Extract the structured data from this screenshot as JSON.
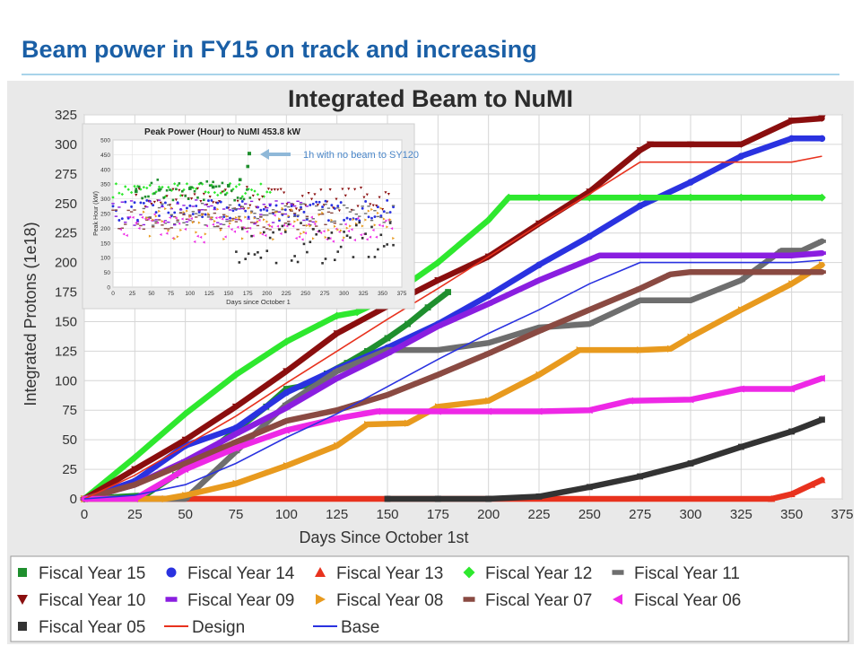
{
  "slide": {
    "title": "Beam power in FY15 on track and increasing"
  },
  "colors": {
    "title": "#1a5fa6",
    "rule": "#a8d4ea",
    "panel": "#e9e9e9",
    "annotation_text": "#4a86c8"
  },
  "chart_data": [
    {
      "type": "line",
      "title": "Integrated Beam to NuMI",
      "xlabel": "Days Since October 1st",
      "ylabel": "Integrated Protons (1e18)",
      "xlim": [
        0,
        375
      ],
      "ylim": [
        0,
        325
      ],
      "xticks": [
        0,
        25,
        50,
        75,
        100,
        125,
        150,
        175,
        200,
        225,
        250,
        275,
        300,
        325,
        350,
        375
      ],
      "yticks": [
        0,
        25,
        50,
        75,
        100,
        125,
        150,
        175,
        200,
        225,
        250,
        275,
        300,
        325
      ],
      "grid": true,
      "legend_position": "bottom",
      "series": [
        {
          "name": "Fiscal Year 15",
          "marker": "square",
          "color": "#1f8f2e",
          "x": [
            0,
            30,
            45,
            60,
            75,
            90,
            100,
            110,
            120,
            130,
            140,
            150,
            160,
            170,
            180
          ],
          "y": [
            0,
            3,
            20,
            38,
            58,
            78,
            93,
            96,
            106,
            115,
            125,
            136,
            148,
            162,
            175
          ]
        },
        {
          "name": "Fiscal Year 14",
          "marker": "circle",
          "color": "#2a32e0",
          "x": [
            0,
            25,
            50,
            75,
            100,
            125,
            150,
            175,
            200,
            225,
            250,
            275,
            300,
            325,
            350,
            365
          ],
          "y": [
            0,
            15,
            45,
            60,
            90,
            110,
            128,
            148,
            172,
            198,
            222,
            248,
            268,
            290,
            305,
            305
          ]
        },
        {
          "name": "Fiscal Year 13",
          "marker": "triangle",
          "color": "#e8321e",
          "x": [
            0,
            340,
            350,
            360,
            365
          ],
          "y": [
            0,
            0,
            4,
            12,
            16
          ]
        },
        {
          "name": "Fiscal Year 12",
          "marker": "diamond",
          "color": "#2ee82e",
          "x": [
            0,
            25,
            50,
            75,
            100,
            125,
            135,
            150,
            175,
            200,
            210,
            225,
            250,
            275,
            300,
            325,
            350,
            365
          ],
          "y": [
            0,
            35,
            72,
            105,
            133,
            155,
            158,
            170,
            200,
            236,
            255,
            255,
            255,
            255,
            255,
            255,
            255,
            255
          ]
        },
        {
          "name": "Fiscal Year 11",
          "marker": "dash",
          "color": "#6e6e6e",
          "x": [
            0,
            50,
            75,
            100,
            125,
            150,
            175,
            200,
            225,
            250,
            275,
            300,
            325,
            345,
            355,
            365
          ],
          "y": [
            0,
            0,
            40,
            80,
            108,
            126,
            126,
            132,
            145,
            148,
            168,
            168,
            185,
            210,
            210,
            218
          ]
        },
        {
          "name": "Fiscal Year 10",
          "marker": "triangle-down",
          "color": "#8a0e0e",
          "x": [
            0,
            25,
            50,
            75,
            100,
            125,
            150,
            175,
            200,
            225,
            250,
            275,
            280,
            300,
            325,
            350,
            365
          ],
          "y": [
            0,
            25,
            50,
            78,
            108,
            140,
            163,
            185,
            205,
            233,
            260,
            295,
            300,
            300,
            300,
            320,
            322
          ]
        },
        {
          "name": "Fiscal Year 09",
          "marker": "dash",
          "color": "#8a1ee0",
          "x": [
            0,
            25,
            50,
            75,
            100,
            125,
            150,
            175,
            200,
            225,
            255,
            280,
            300,
            325,
            350,
            365
          ],
          "y": [
            0,
            12,
            32,
            55,
            77,
            102,
            123,
            146,
            165,
            185,
            206,
            206,
            206,
            206,
            206,
            208
          ]
        },
        {
          "name": "Fiscal Year 08",
          "marker": "triangle-right",
          "color": "#e89a1e",
          "x": [
            0,
            40,
            50,
            75,
            100,
            125,
            140,
            160,
            175,
            200,
            225,
            245,
            275,
            290,
            300,
            325,
            350,
            365
          ],
          "y": [
            0,
            0,
            3,
            13,
            28,
            45,
            63,
            64,
            78,
            83,
            105,
            126,
            126,
            127,
            137,
            160,
            182,
            198
          ]
        },
        {
          "name": "Fiscal Year 07",
          "marker": "dash",
          "color": "#8a4a42",
          "x": [
            0,
            25,
            50,
            75,
            100,
            125,
            150,
            175,
            200,
            225,
            250,
            275,
            290,
            300,
            325,
            350,
            365
          ],
          "y": [
            0,
            12,
            30,
            48,
            66,
            75,
            88,
            105,
            123,
            142,
            160,
            178,
            190,
            192,
            192,
            192,
            192
          ]
        },
        {
          "name": "Fiscal Year 06",
          "marker": "triangle-left",
          "color": "#ee28e6",
          "x": [
            0,
            25,
            50,
            75,
            100,
            125,
            145,
            175,
            200,
            225,
            250,
            270,
            300,
            325,
            350,
            365
          ],
          "y": [
            0,
            0,
            25,
            43,
            58,
            68,
            74,
            74,
            74,
            74,
            75,
            83,
            84,
            93,
            93,
            102
          ]
        },
        {
          "name": "Fiscal Year 05",
          "marker": "square",
          "color": "#333333",
          "x": [
            150,
            175,
            200,
            225,
            250,
            275,
            300,
            325,
            350,
            365
          ],
          "y": [
            0,
            0,
            0,
            2,
            10,
            19,
            30,
            44,
            57,
            67
          ]
        },
        {
          "name": "Design",
          "marker": "line",
          "color": "#e8321e",
          "x": [
            0,
            25,
            50,
            75,
            100,
            125,
            150,
            175,
            200,
            225,
            250,
            275,
            300,
            325,
            350,
            365
          ],
          "y": [
            0,
            20,
            45,
            70,
            98,
            125,
            152,
            178,
            205,
            232,
            258,
            285,
            285,
            285,
            285,
            290
          ]
        },
        {
          "name": "Base",
          "marker": "line",
          "color": "#2a32e0",
          "x": [
            0,
            25,
            50,
            75,
            100,
            125,
            150,
            175,
            200,
            225,
            250,
            275,
            300,
            325,
            350,
            365
          ],
          "y": [
            0,
            3,
            12,
            30,
            52,
            72,
            95,
            118,
            140,
            160,
            182,
            200,
            200,
            200,
            200,
            202
          ]
        }
      ],
      "legend": [
        "Fiscal Year 15",
        "Fiscal Year 14",
        "Fiscal Year 13",
        "Fiscal Year 12",
        "Fiscal Year 11",
        "Fiscal Year 10",
        "Fiscal Year 09",
        "Fiscal Year 08",
        "Fiscal Year 07",
        "Fiscal Year 06",
        "Fiscal Year 05",
        "Design",
        "Base"
      ]
    },
    {
      "type": "scatter",
      "title": "Peak Power (Hour) to NuMI 453.8 kW",
      "xlabel": "Days since October 1",
      "ylabel": "Peak Hour (kW)",
      "xlim": [
        0,
        375
      ],
      "ylim": [
        0,
        500
      ],
      "xticks": [
        0,
        25,
        50,
        75,
        100,
        125,
        150,
        175,
        200,
        225,
        250,
        275,
        300,
        325,
        350,
        375
      ],
      "yticks": [
        0,
        50,
        100,
        150,
        200,
        250,
        300,
        350,
        400,
        450,
        500
      ],
      "grid": true,
      "clusters": [
        {
          "series": "Fiscal Year 12",
          "x0": 0,
          "x1": 205,
          "ymid": 330,
          "spread": 25
        },
        {
          "series": "Fiscal Year 10",
          "x0": 30,
          "x1": 360,
          "ymid": 300,
          "spread": 40
        },
        {
          "series": "Fiscal Year 14",
          "x0": 0,
          "x1": 365,
          "ymid": 260,
          "spread": 35
        },
        {
          "series": "Fiscal Year 11",
          "x0": 40,
          "x1": 365,
          "ymid": 245,
          "spread": 40
        },
        {
          "series": "Fiscal Year 09",
          "x0": 0,
          "x1": 260,
          "ymid": 255,
          "spread": 45
        },
        {
          "series": "Fiscal Year 07",
          "x0": 0,
          "x1": 290,
          "ymid": 230,
          "spread": 35
        },
        {
          "series": "Fiscal Year 06",
          "x0": 10,
          "x1": 365,
          "ymid": 200,
          "spread": 50
        },
        {
          "series": "Fiscal Year 08",
          "x0": 40,
          "x1": 365,
          "ymid": 215,
          "spread": 55
        },
        {
          "series": "Fiscal Year 05",
          "x0": 160,
          "x1": 365,
          "ymid": 150,
          "spread": 70
        },
        {
          "series": "Fiscal Year 15",
          "x0": 30,
          "x1": 180,
          "ymid": 330,
          "spread": 35
        }
      ],
      "fy15_trend": {
        "x": [
          30,
          60,
          100,
          130,
          150,
          165,
          175
        ],
        "y": [
          325,
          330,
          335,
          340,
          345,
          365,
          410
        ]
      },
      "peak_point": {
        "x": 177,
        "y": 453.8
      },
      "annotation": "1h with no beam to SY120"
    }
  ]
}
